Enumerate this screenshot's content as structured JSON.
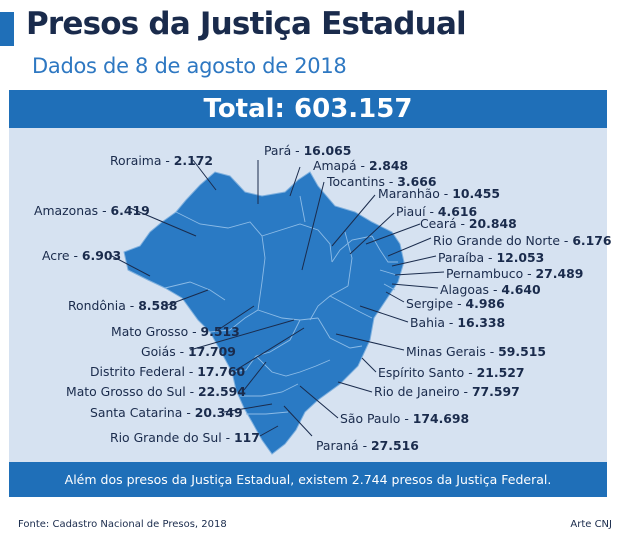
{
  "header": {
    "title": "Presos da Justiça Estadual",
    "subtitle": "Dados de 8 de agosto de 2018"
  },
  "total": {
    "label": "Total:",
    "value": "603.157"
  },
  "states": [
    {
      "name": "Roraima",
      "value": "2.172"
    },
    {
      "name": "Pará",
      "value": "16.065"
    },
    {
      "name": "Amapá",
      "value": "2.848"
    },
    {
      "name": "Tocantins",
      "value": "3.666"
    },
    {
      "name": "Maranhão",
      "value": "10.455"
    },
    {
      "name": "Amazonas",
      "value": "6.419"
    },
    {
      "name": "Piauí",
      "value": "4.616"
    },
    {
      "name": "Ceará",
      "value": "20.848"
    },
    {
      "name": "Rio Grande do Norte",
      "value": "6.176"
    },
    {
      "name": "Acre",
      "value": "6.903"
    },
    {
      "name": "Paraíba",
      "value": "12.053"
    },
    {
      "name": "Pernambuco",
      "value": "27.489"
    },
    {
      "name": "Alagoas",
      "value": "4.640"
    },
    {
      "name": "Rondônia",
      "value": "8.588"
    },
    {
      "name": "Sergipe",
      "value": "4.986"
    },
    {
      "name": "Bahia",
      "value": "16.338"
    },
    {
      "name": "Mato Grosso",
      "value": "9.513"
    },
    {
      "name": "Goiás",
      "value": "17.709"
    },
    {
      "name": "Minas Gerais",
      "value": "59.515"
    },
    {
      "name": "Distrito Federal",
      "value": "17.760"
    },
    {
      "name": "Espírito Santo",
      "value": "21.527"
    },
    {
      "name": "Mato Grosso do Sul",
      "value": "22.594"
    },
    {
      "name": "Rio de Janeiro",
      "value": "77.597"
    },
    {
      "name": "Santa Catarina",
      "value": "20.349"
    },
    {
      "name": "São Paulo",
      "value": "174.698"
    },
    {
      "name": "Rio Grande do Sul",
      "value": "117"
    },
    {
      "name": "Paraná",
      "value": "27.516"
    }
  ],
  "note": "Além dos presos da Justiça Estadual, existem 2.744 presos da Justiça Federal.",
  "footer": {
    "source": "Fonte:  Cadastro Nacional de Presos, 2018",
    "credit": "Arte CNJ"
  },
  "colors": {
    "accent": "#1f6fb8",
    "map_fill": "#2a7ac4",
    "panel_bg": "#d6e2f1",
    "title": "#1a2b4c",
    "subtitle": "#2e78c2"
  }
}
